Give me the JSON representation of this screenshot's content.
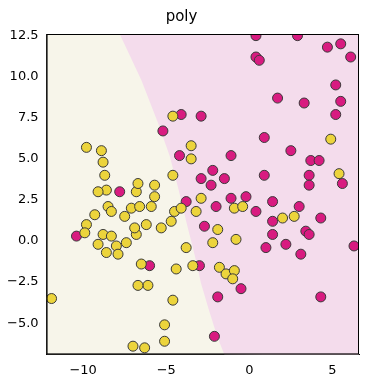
{
  "chart_data": {
    "type": "scatter",
    "title": "poly",
    "xlim": [
      -12.2,
      6.6
    ],
    "ylim": [
      -6.9,
      12.6
    ],
    "xticks": [
      {
        "value": -10,
        "label": "−10"
      },
      {
        "value": -5,
        "label": "−5"
      },
      0,
      5
    ],
    "yticks": [
      {
        "value": -5,
        "label": "−5.0"
      },
      {
        "value": -2.5,
        "label": "−2.5"
      },
      {
        "value": 0,
        "label": "0.0"
      },
      2.5,
      {
        "value": 5,
        "label": "5.0"
      },
      7.5,
      {
        "value": 10,
        "label": "10.0"
      },
      12.5
    ],
    "grid": false,
    "decision_boundary": {
      "x": [
        -7.8,
        -6.5,
        -5.5,
        -4.8,
        -4.3,
        -3.8,
        -3.3,
        -2.9,
        -2.4,
        -1.9,
        -1.5
      ],
      "y": [
        12.6,
        9.8,
        7.2,
        5.2,
        3.3,
        1.2,
        -0.8,
        -2.6,
        -4.3,
        -5.9,
        -6.9
      ]
    },
    "series": [
      {
        "color": "#ecd43c",
        "marker": "circle",
        "x": [
          -9.8,
          -8.9,
          -8.8,
          -8.7,
          -8.6,
          -9.1,
          -8.5,
          -8.3,
          -9.3,
          -9.8,
          -9.9,
          -8.8,
          -9.1,
          -8.3,
          -8.0,
          -7.9,
          -8.6,
          -7.4,
          -6.8,
          -6.9,
          -7.5,
          -7.1,
          -6.6,
          -6.8,
          -6.7,
          -5.7,
          -5.7,
          -5.9,
          -6.2,
          -5.3,
          -4.7,
          -4.5,
          -4.1,
          -4.6,
          -3.5,
          -4.6,
          -6.5,
          -6.1,
          -6.7,
          -4.4,
          -4.6,
          -5.1,
          -5.1,
          -6.3,
          -7.0,
          -3.4,
          -1.8,
          -1.4,
          -0.9,
          -1.0,
          -2.2,
          -0.8,
          -0.9,
          -1.9,
          -3.2,
          -2.9,
          -0.4,
          2.0,
          2.7,
          4.9,
          5.4,
          -3.8,
          -3.5,
          -11.9
        ],
        "y": [
          5.7,
          5.5,
          4.8,
          4.0,
          3.1,
          3.0,
          2.1,
          1.8,
          1.6,
          1.0,
          0.5,
          0.4,
          -0.2,
          0.3,
          -0.3,
          -0.8,
          -0.7,
          -0.1,
          0.4,
          0.8,
          1.5,
          2.0,
          2.1,
          3.0,
          3.5,
          3.4,
          2.7,
          2.1,
          1.0,
          0.8,
          1.2,
          1.8,
          2.0,
          4.0,
          5.0,
          7.6,
          -1.4,
          -2.7,
          -2.7,
          -1.7,
          -3.6,
          -5.1,
          -6.1,
          -6.5,
          -6.4,
          -1.5,
          -1.6,
          -2.0,
          -1.8,
          -2.3,
          -0.1,
          0.1,
          2.0,
          0.7,
          1.8,
          2.6,
          2.1,
          1.4,
          1.5,
          6.2,
          4.1,
          -0.4,
          5.8,
          -3.5
        ]
      },
      {
        "color": "#d81b80",
        "marker": "circle",
        "x": [
          -10.4,
          -7.8,
          -6.0,
          -5.2,
          -4.2,
          -4.1,
          -2.9,
          -3.8,
          -2.9,
          -2.2,
          -2.3,
          -1.5,
          -1.1,
          -1.1,
          -0.2,
          0.4,
          1.4,
          1.4,
          -2.7,
          -2.0,
          -3.0,
          -1.9,
          -0.5,
          -2.1,
          0.4,
          0.4,
          0.6,
          1.7,
          0.9,
          2.5,
          2.9,
          3.6,
          3.7,
          3.6,
          4.2,
          4.7,
          5.5,
          5.2,
          5.5,
          5.2,
          6.1,
          3.3,
          4.3,
          3.4,
          3.6,
          3.1,
          4.3,
          2.2,
          1.0,
          5.6,
          1.4,
          6.3,
          0.9,
          3.0
        ],
        "y": [
          0.3,
          3.0,
          -1.5,
          6.7,
          5.2,
          7.7,
          7.6,
          2.4,
          3.8,
          4.3,
          3.4,
          3.8,
          5.2,
          2.6,
          2.7,
          1.8,
          2.4,
          0.4,
          0.9,
          2.1,
          -1.5,
          -3.4,
          -2.9,
          -5.8,
          12.5,
          11.2,
          11.0,
          8.7,
          6.3,
          5.5,
          12.5,
          4.0,
          4.9,
          3.4,
          4.9,
          11.8,
          12.0,
          9.5,
          8.5,
          7.7,
          11.2,
          8.4,
          1.4,
          0.6,
          0.4,
          -0.8,
          -3.4,
          -0.2,
          -0.4,
          3.5,
          1.2,
          -0.3,
          4.0,
          2.1
        ]
      }
    ]
  }
}
